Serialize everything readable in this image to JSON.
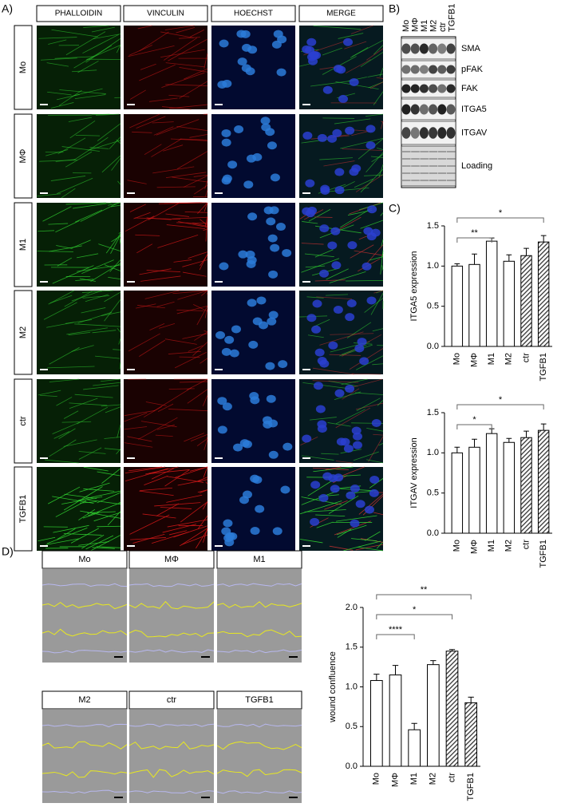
{
  "panel_labels": [
    "A)",
    "B)",
    "C)",
    "D)"
  ],
  "panel_a": {
    "columns": [
      "PHALLOIDIN",
      "VINCULIN",
      "HOECHST",
      "MERGE"
    ],
    "rows": [
      "Mo",
      "MΦ",
      "M1",
      "M2",
      "ctr",
      "TGFB1"
    ]
  },
  "panel_b": {
    "lanes": [
      "Mo",
      "MΦ",
      "M1",
      "M2",
      "ctr",
      "TGFB1"
    ],
    "bands": [
      "SMA",
      "pFAK",
      "FAK",
      "ITGA5",
      "ITGAV",
      "Loading"
    ]
  },
  "panel_d": {
    "conditions": [
      "Mo",
      "MΦ",
      "M1",
      "M2",
      "ctr",
      "TGFB1"
    ]
  },
  "chart_data": [
    {
      "type": "bar",
      "y_label": "ITGA5 expression",
      "categories": [
        "Mo",
        "MΦ",
        "M1",
        "M2",
        "ctr",
        "TGFB1"
      ],
      "values": [
        1.0,
        1.02,
        1.31,
        1.06,
        1.13,
        1.3
      ],
      "errors": [
        0.03,
        0.13,
        0.04,
        0.08,
        0.09,
        0.08
      ],
      "hatched": [
        false,
        false,
        false,
        false,
        true,
        true
      ],
      "color": "#ffffff",
      "ylim": [
        0,
        1.5
      ],
      "yticks": [
        {
          "value": 0,
          "label": "0.0"
        },
        0.5,
        {
          "value": 1,
          "label": "1.0"
        },
        1.5
      ],
      "annotations": [
        {
          "between": [
            0,
            2
          ],
          "text": "**"
        },
        {
          "between": [
            0,
            5
          ],
          "text": "*"
        }
      ]
    },
    {
      "type": "bar",
      "y_label": "ITGAV expression",
      "categories": [
        "Mo",
        "MΦ",
        "M1",
        "M2",
        "ctr",
        "TGFB1"
      ],
      "values": [
        1.0,
        1.07,
        1.24,
        1.13,
        1.19,
        1.28
      ],
      "errors": [
        0.07,
        0.1,
        0.06,
        0.05,
        0.08,
        0.08
      ],
      "hatched": [
        false,
        false,
        false,
        false,
        true,
        true
      ],
      "color": "#ffffff",
      "ylim": [
        0,
        1.5
      ],
      "yticks": [
        {
          "value": 0,
          "label": "0.0"
        },
        0.5,
        {
          "value": 1,
          "label": "1.0"
        },
        1.5
      ],
      "annotations": [
        {
          "between": [
            0,
            2
          ],
          "text": "*"
        },
        {
          "between": [
            0,
            5
          ],
          "text": "*"
        }
      ]
    },
    {
      "type": "bar",
      "y_label": "wound confluence",
      "categories": [
        "Mo",
        "MΦ",
        "M1",
        "M2",
        "ctr",
        "TGFB1"
      ],
      "values": [
        1.08,
        1.15,
        0.46,
        1.28,
        1.45,
        0.8
      ],
      "errors": [
        0.08,
        0.12,
        0.08,
        0.05,
        0.02,
        0.07
      ],
      "hatched": [
        false,
        false,
        false,
        false,
        true,
        true
      ],
      "color": "#ffffff",
      "ylim": [
        0,
        2
      ],
      "yticks": [
        {
          "value": 0,
          "label": "0.0"
        },
        0.5,
        {
          "value": 1,
          "label": "1.0"
        },
        1.5,
        {
          "value": 2,
          "label": "2.0"
        }
      ],
      "annotations": [
        {
          "between": [
            0,
            2
          ],
          "text": "****"
        },
        {
          "between": [
            0,
            4
          ],
          "text": "*"
        },
        {
          "between": [
            0,
            5
          ],
          "text": "**"
        }
      ]
    }
  ]
}
